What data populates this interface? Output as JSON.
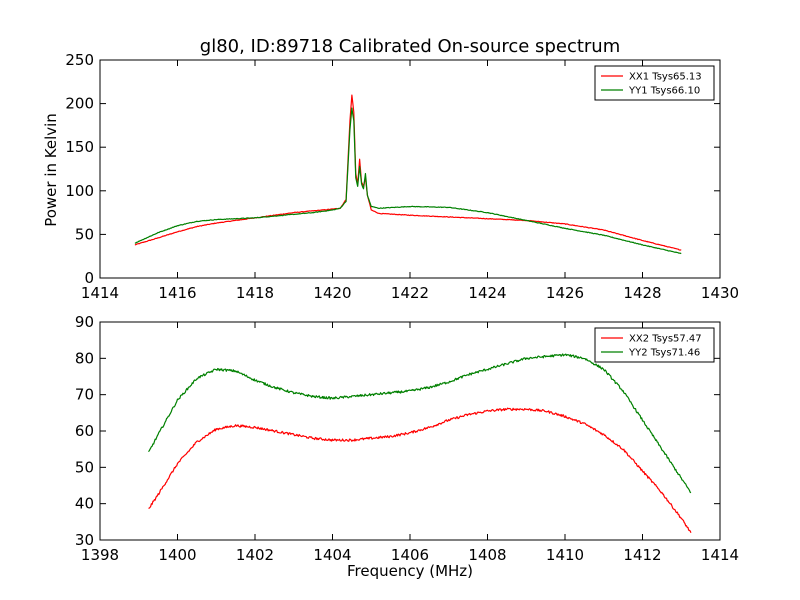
{
  "chart_data": [
    {
      "type": "line",
      "title": "gl80, ID:89718 Calibrated On-source spectrum",
      "xlabel": "",
      "ylabel": "Power in Kelvin",
      "xlim": [
        1414,
        1430
      ],
      "ylim": [
        0,
        250
      ],
      "xticks": [
        "1414",
        "1416",
        "1418",
        "1420",
        "1422",
        "1424",
        "1426",
        "1428",
        "1430"
      ],
      "yticks": [
        "0",
        "50",
        "100",
        "150",
        "200",
        "250"
      ],
      "legend_position": "top-right",
      "grid": false,
      "series": [
        {
          "name": "XX1 Tsys65.13",
          "color": "#ff0000",
          "x": [
            1414.9,
            1415.5,
            1416.0,
            1416.5,
            1417.0,
            1417.5,
            1418.0,
            1418.5,
            1419.0,
            1419.5,
            1420.0,
            1420.2,
            1420.35,
            1420.45,
            1420.5,
            1420.55,
            1420.6,
            1420.65,
            1420.7,
            1420.75,
            1420.8,
            1420.85,
            1420.9,
            1421.0,
            1421.2,
            1422.0,
            1423.0,
            1424.0,
            1425.0,
            1426.0,
            1427.0,
            1428.0,
            1429.0
          ],
          "y": [
            38,
            46,
            53,
            59,
            63,
            66,
            69,
            72,
            75,
            77,
            79,
            80,
            90,
            180,
            210,
            190,
            120,
            108,
            136,
            110,
            105,
            115,
            95,
            78,
            74,
            72,
            70,
            68,
            66,
            62,
            55,
            43,
            32
          ]
        },
        {
          "name": "YY1 Tsys66.10",
          "color": "#008000",
          "x": [
            1414.9,
            1415.5,
            1416.0,
            1416.5,
            1417.0,
            1417.5,
            1418.0,
            1418.5,
            1419.0,
            1419.5,
            1420.0,
            1420.2,
            1420.35,
            1420.45,
            1420.5,
            1420.55,
            1420.6,
            1420.65,
            1420.7,
            1420.75,
            1420.8,
            1420.85,
            1420.9,
            1421.0,
            1421.2,
            1422.0,
            1423.0,
            1424.0,
            1425.0,
            1426.0,
            1427.0,
            1428.0,
            1429.0
          ],
          "y": [
            40,
            52,
            60,
            65,
            67,
            68,
            69,
            71,
            73,
            75,
            78,
            80,
            88,
            170,
            195,
            180,
            115,
            105,
            128,
            108,
            102,
            120,
            95,
            82,
            80,
            82,
            81,
            75,
            66,
            57,
            49,
            38,
            28
          ]
        }
      ]
    },
    {
      "type": "line",
      "title": "",
      "xlabel": "Frequency (MHz)",
      "ylabel": "",
      "xlim": [
        1398,
        1414
      ],
      "ylim": [
        30,
        90
      ],
      "xticks": [
        "1398",
        "1400",
        "1402",
        "1404",
        "1406",
        "1408",
        "1410",
        "1412",
        "1414"
      ],
      "yticks": [
        "30",
        "40",
        "50",
        "60",
        "70",
        "80",
        "90"
      ],
      "legend_position": "top-right",
      "grid": false,
      "series": [
        {
          "name": "XX2 Tsys57.47",
          "color": "#ff0000",
          "x": [
            1399.25,
            1399.5,
            1400.0,
            1400.5,
            1401.0,
            1401.5,
            1402.0,
            1402.5,
            1403.0,
            1403.5,
            1404.0,
            1404.5,
            1405.0,
            1405.5,
            1406.0,
            1406.5,
            1407.0,
            1407.5,
            1408.0,
            1408.5,
            1409.0,
            1409.5,
            1410.0,
            1410.5,
            1411.0,
            1411.5,
            1412.0,
            1412.5,
            1413.0,
            1413.25
          ],
          "y": [
            38.5,
            42.5,
            51,
            57,
            60.5,
            61.5,
            61,
            60,
            59,
            58,
            57.5,
            57.5,
            58,
            58.5,
            59.5,
            61,
            63,
            64.5,
            65.5,
            66,
            66,
            65.5,
            64,
            62,
            59,
            55,
            49,
            43,
            36,
            32
          ]
        },
        {
          "name": "YY2 Tsys71.46",
          "color": "#008000",
          "x": [
            1399.25,
            1399.5,
            1400.0,
            1400.5,
            1401.0,
            1401.5,
            1402.0,
            1402.5,
            1403.0,
            1403.5,
            1404.0,
            1404.5,
            1405.0,
            1405.5,
            1406.0,
            1406.5,
            1407.0,
            1407.5,
            1408.0,
            1408.5,
            1409.0,
            1409.5,
            1410.0,
            1410.5,
            1411.0,
            1411.5,
            1412.0,
            1412.5,
            1413.0,
            1413.25
          ],
          "y": [
            54,
            59,
            68.5,
            74.5,
            77,
            76.5,
            74,
            72,
            70.5,
            69.5,
            69,
            69.5,
            70,
            70.5,
            71,
            72,
            73.5,
            75.5,
            77,
            78.5,
            80,
            80.5,
            81,
            80,
            77,
            71,
            63,
            55,
            47,
            43
          ]
        }
      ]
    }
  ]
}
